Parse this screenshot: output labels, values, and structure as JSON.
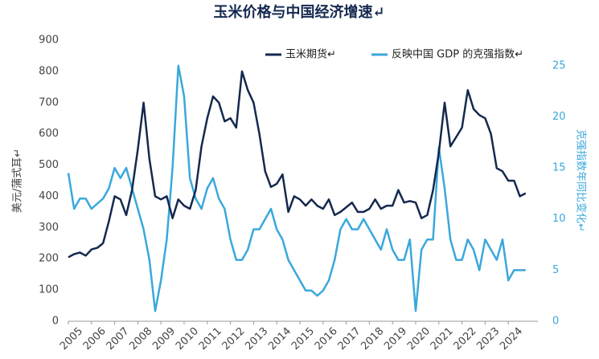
{
  "chart_data": {
    "type": "line",
    "title": "玉米价格与中国经济增速↵",
    "y_label": "美元/蒲式耳↵",
    "y2_label": "克强指数年同比变化↵",
    "xlim": [
      2005,
      2025
    ],
    "xticks": [
      2005,
      2006,
      2007,
      2008,
      2009,
      2010,
      2011,
      2012,
      2013,
      2014,
      2015,
      2016,
      2017,
      2018,
      2019,
      2020,
      2021,
      2022,
      2023,
      2024
    ],
    "ylim": [
      0,
      900
    ],
    "yticks": [
      0,
      100,
      200,
      300,
      400,
      500,
      600,
      700,
      800,
      900
    ],
    "y2lim": [
      0,
      27.5
    ],
    "y2ticks": [
      0,
      5,
      10,
      15,
      20,
      25
    ],
    "x": [
      2005,
      2005.25,
      2005.5,
      2005.75,
      2006,
      2006.25,
      2006.5,
      2006.75,
      2007,
      2007.25,
      2007.5,
      2007.75,
      2008,
      2008.25,
      2008.5,
      2008.75,
      2009,
      2009.25,
      2009.5,
      2009.75,
      2010,
      2010.25,
      2010.5,
      2010.75,
      2011,
      2011.25,
      2011.5,
      2011.75,
      2012,
      2012.25,
      2012.5,
      2012.75,
      2013,
      2013.25,
      2013.5,
      2013.75,
      2014,
      2014.25,
      2014.5,
      2014.75,
      2015,
      2015.25,
      2015.5,
      2015.75,
      2016,
      2016.25,
      2016.5,
      2016.75,
      2017,
      2017.25,
      2017.5,
      2017.75,
      2018,
      2018.25,
      2018.5,
      2018.75,
      2019,
      2019.25,
      2019.5,
      2019.75,
      2020,
      2020.25,
      2020.5,
      2020.75,
      2021,
      2021.25,
      2021.5,
      2021.75,
      2022,
      2022.25,
      2022.5,
      2022.75,
      2023,
      2023.25,
      2023.5,
      2023.75,
      2024,
      2024.25,
      2024.5,
      2024.75
    ],
    "series": [
      {
        "name": "玉米期货↵",
        "color": "#14294f",
        "values": [
          205,
          215,
          220,
          210,
          230,
          235,
          250,
          320,
          400,
          390,
          340,
          420,
          550,
          700,
          520,
          400,
          390,
          400,
          330,
          390,
          370,
          360,
          420,
          560,
          650,
          720,
          700,
          640,
          650,
          620,
          800,
          740,
          700,
          600,
          480,
          430,
          440,
          470,
          350,
          400,
          390,
          370,
          390,
          370,
          360,
          390,
          340,
          350,
          365,
          380,
          350,
          350,
          360,
          390,
          360,
          370,
          370,
          420,
          380,
          385,
          380,
          330,
          340,
          420,
          540,
          700,
          560,
          590,
          620,
          740,
          680,
          660,
          650,
          600,
          490,
          480,
          450,
          450,
          400,
          410
        ]
      },
      {
        "name": "反映中国 GDP 的克强指数↵",
        "color": "#3aa8dc",
        "axis": "y2",
        "values": [
          14.5,
          11,
          12,
          12,
          11,
          11.5,
          12,
          13,
          15,
          14,
          15,
          13,
          11,
          9,
          6,
          1,
          4,
          8,
          15,
          25,
          22,
          14,
          12,
          11,
          13,
          14,
          12,
          11,
          8,
          6,
          6,
          7,
          9,
          9,
          10,
          11,
          9,
          8,
          6,
          5,
          4,
          3,
          3,
          2.5,
          3,
          4,
          6,
          9,
          10,
          9,
          9,
          10,
          9,
          8,
          7,
          9,
          7,
          6,
          6,
          8,
          1,
          7,
          8,
          8,
          17,
          13,
          8,
          6,
          6,
          8,
          7,
          5,
          8,
          7,
          6,
          8,
          4,
          5,
          5,
          5
        ]
      }
    ]
  }
}
